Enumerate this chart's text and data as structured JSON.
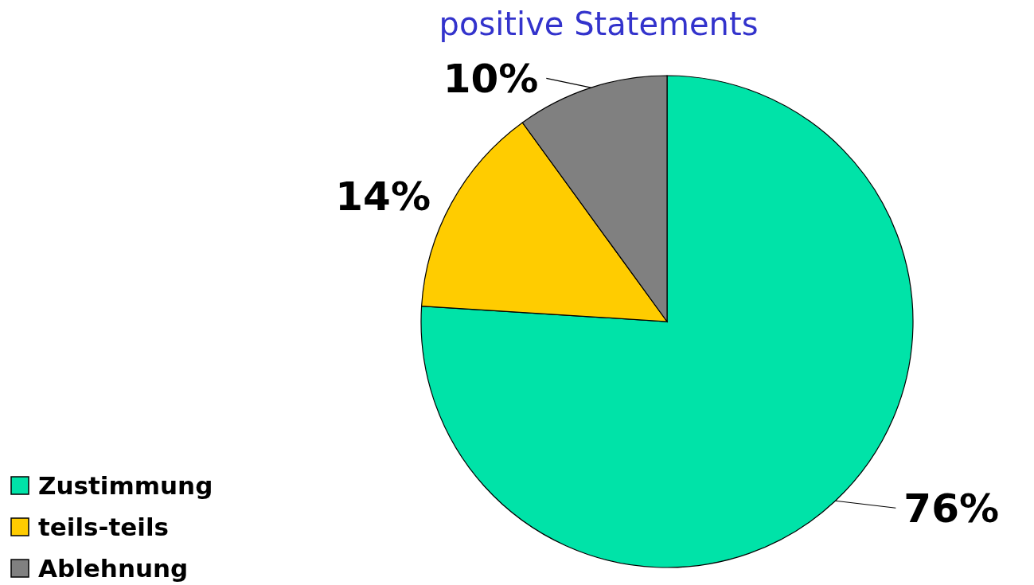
{
  "chart_data": {
    "type": "pie",
    "title": "positive Statements",
    "categories": [
      "Zustimmung",
      "teils-teils",
      "Ablehnung"
    ],
    "values": [
      76,
      14,
      10
    ],
    "colors": [
      "#00e3a8",
      "#ffcc00",
      "#808080"
    ],
    "value_labels": [
      "76%",
      "14%",
      "10%"
    ],
    "legend": "bottom left"
  }
}
